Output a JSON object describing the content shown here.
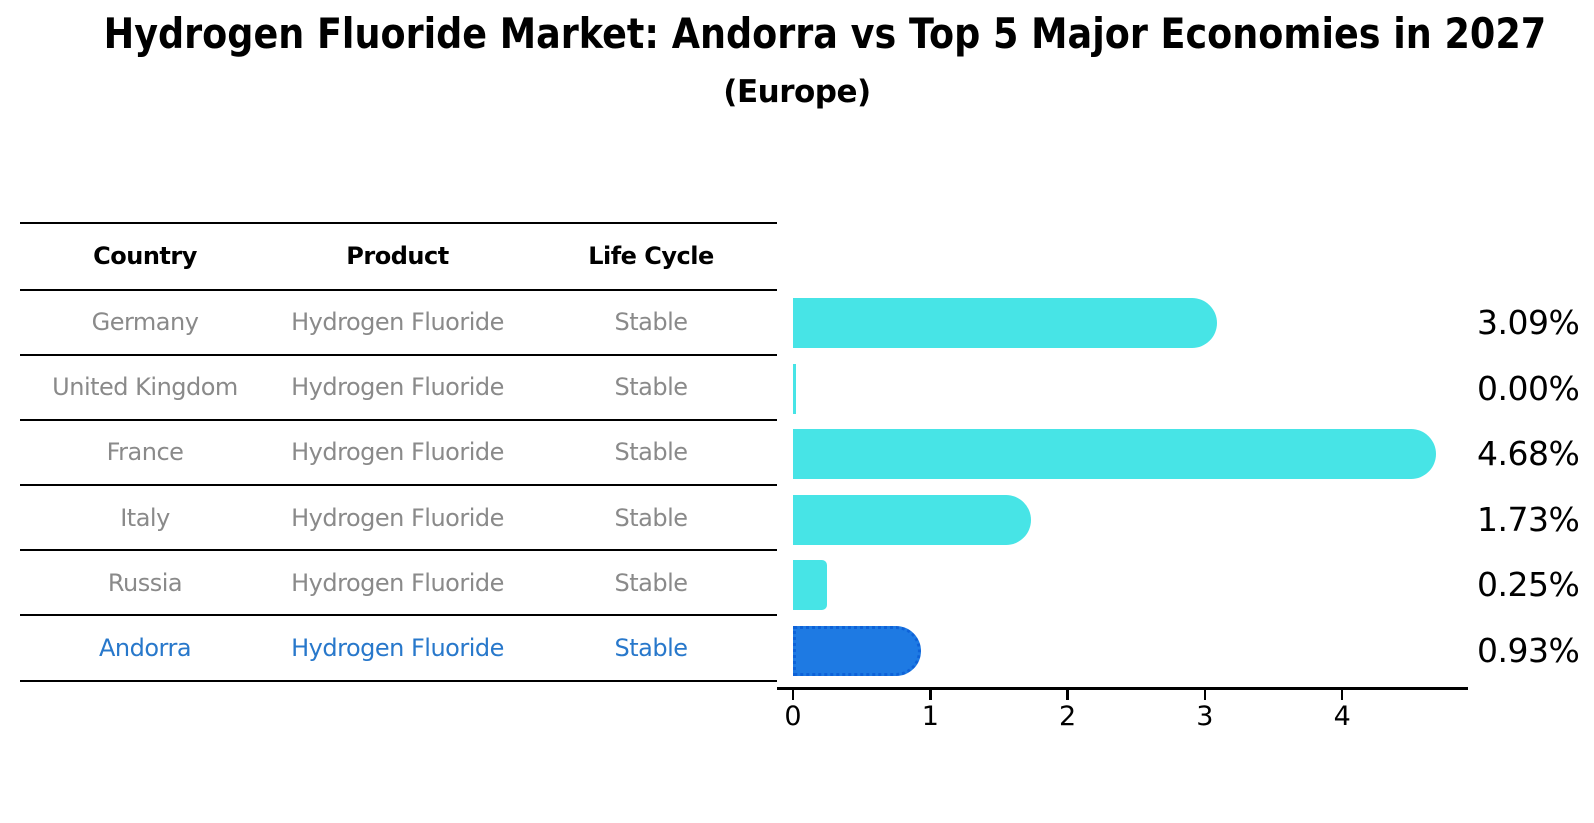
{
  "title": "Hydrogen Fluoride Market: Andorra vs Top 5 Major Economies in 2027",
  "subtitle": "(Europe)",
  "table": {
    "columns": [
      "Country",
      "Product",
      "Life Cycle"
    ],
    "rows": [
      {
        "country": "Germany",
        "product": "Hydrogen Fluoride",
        "life_cycle": "Stable",
        "highlight": false
      },
      {
        "country": "United Kingdom",
        "product": "Hydrogen Fluoride",
        "life_cycle": "Stable",
        "highlight": false
      },
      {
        "country": "France",
        "product": "Hydrogen Fluoride",
        "life_cycle": "Stable",
        "highlight": false
      },
      {
        "country": "Italy",
        "product": "Hydrogen Fluoride",
        "life_cycle": "Stable",
        "highlight": false
      },
      {
        "country": "Russia",
        "product": "Hydrogen Fluoride",
        "life_cycle": "Stable",
        "highlight": false
      },
      {
        "country": "Andorra",
        "product": "Hydrogen Fluoride",
        "life_cycle": "Stable",
        "highlight": true
      }
    ]
  },
  "chart_data": {
    "type": "bar",
    "orientation": "horizontal",
    "categories": [
      "Germany",
      "United Kingdom",
      "France",
      "Italy",
      "Russia",
      "Andorra"
    ],
    "values": [
      3.09,
      0.0,
      4.68,
      1.73,
      0.25,
      0.93
    ],
    "value_labels": [
      "3.09%",
      "0.00%",
      "4.68%",
      "1.73%",
      "0.25%",
      "0.93%"
    ],
    "highlight_index": 5,
    "x_ticks": [
      "0",
      "1",
      "2",
      "3",
      "4"
    ],
    "xlim": [
      0,
      4.92
    ],
    "grid": false,
    "legend": false
  },
  "colors": {
    "bar_default": "#47E4E6",
    "bar_highlight": "#1E7AE3",
    "bar_highlight_border": "#0E62D8",
    "table_text": "#8a8a8a",
    "highlight_text": "#2878CB",
    "axis": "#000000"
  }
}
